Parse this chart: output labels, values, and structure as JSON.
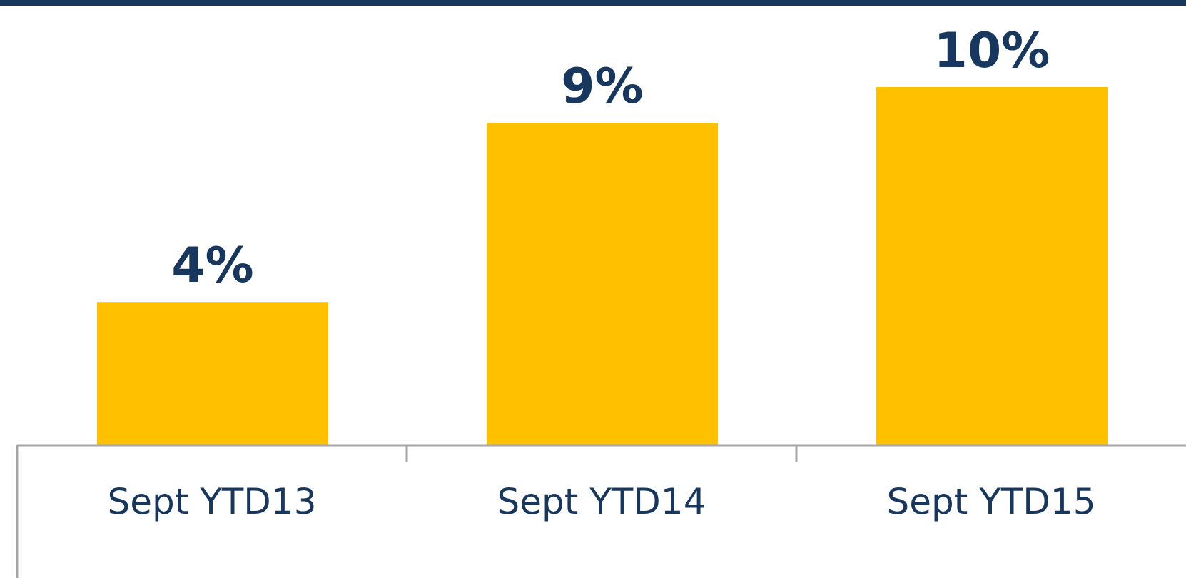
{
  "chart_data": {
    "type": "bar",
    "categories": [
      "Sept YTD13",
      "Sept YTD14",
      "Sept YTD15"
    ],
    "values": [
      4,
      9,
      10
    ],
    "color": "#ffc000",
    "value_labels": [
      "4%",
      "9%",
      "10%"
    ]
  }
}
